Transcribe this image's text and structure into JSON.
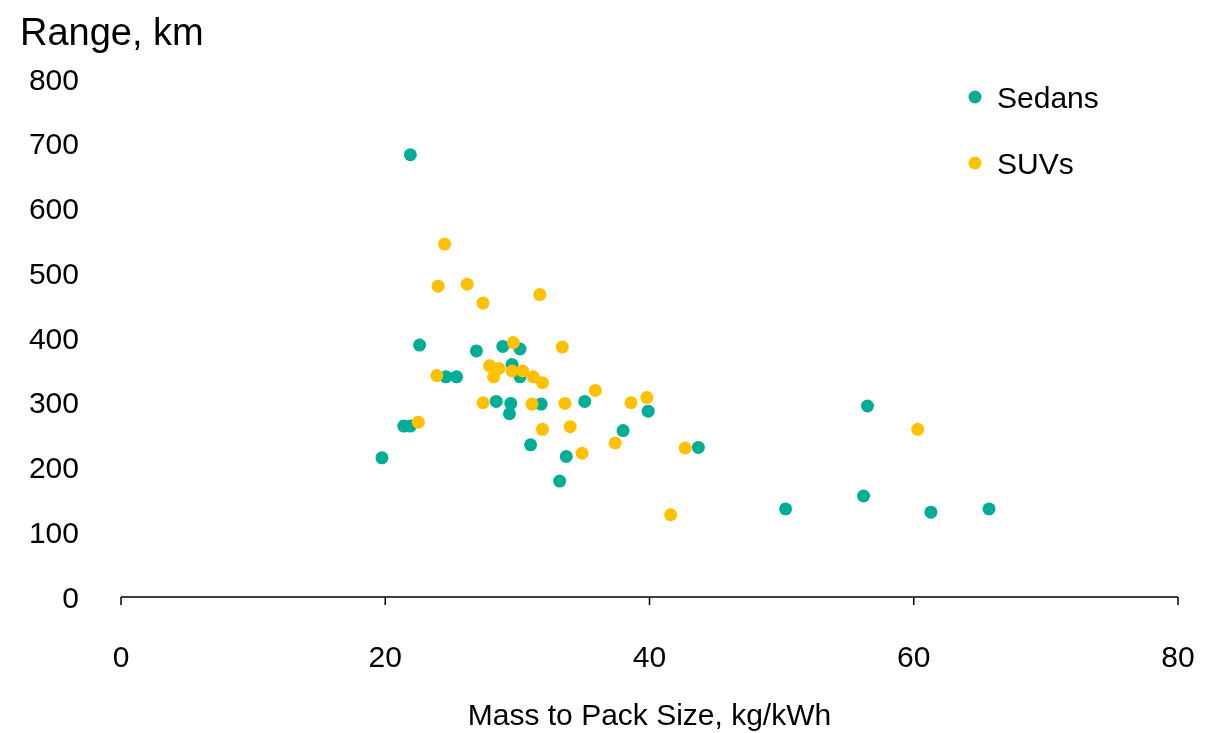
{
  "chart_data": {
    "type": "scatter",
    "ylabel": "Range, km",
    "xlabel": "Mass to Pack Size, kg/kWh",
    "xlim": [
      0,
      80
    ],
    "xticks": [
      0,
      20,
      40,
      60,
      80
    ],
    "ylim": [
      0,
      800
    ],
    "yticks": [
      0,
      100,
      200,
      300,
      400,
      500,
      600,
      700,
      800
    ],
    "grid": false,
    "legend": "top right",
    "marker": "circle",
    "series": [
      {
        "name": "Sedans",
        "color": "#00ae98",
        "x": [
          21.9,
          22.6,
          19.75,
          21.4,
          21.9,
          24.6,
          25.4,
          26.9,
          28.9,
          30.2,
          29.6,
          30.2,
          28.4,
          29.5,
          29.4,
          31.8,
          35.1,
          39.9,
          31.0,
          33.7,
          33.2,
          38.0,
          43.7,
          50.3,
          56.2,
          56.5,
          61.3,
          65.7
        ],
        "values": [
          683,
          389,
          215,
          264,
          264,
          340,
          340,
          380,
          387,
          383,
          359,
          340,
          302,
          299,
          283,
          298,
          302,
          287,
          235,
          217,
          179,
          257,
          231,
          136,
          156,
          295,
          131,
          136
        ]
      },
      {
        "name": "SUVs",
        "color": "#ffc000",
        "x": [
          24.5,
          24.0,
          26.2,
          27.4,
          31.7,
          29.7,
          33.4,
          23.9,
          27.9,
          28.6,
          28.2,
          29.6,
          30.4,
          31.2,
          31.9,
          35.9,
          39.8,
          38.6,
          33.6,
          31.1,
          27.4,
          22.5,
          31.9,
          34.0,
          37.4,
          34.9,
          42.7,
          41.6,
          60.3
        ],
        "values": [
          545,
          480,
          483,
          454,
          467,
          393,
          386,
          342,
          357,
          353,
          340,
          349,
          349,
          340,
          331,
          319,
          308,
          300,
          299,
          298,
          300,
          270,
          259,
          263,
          238,
          222,
          230,
          127,
          259
        ]
      }
    ]
  }
}
